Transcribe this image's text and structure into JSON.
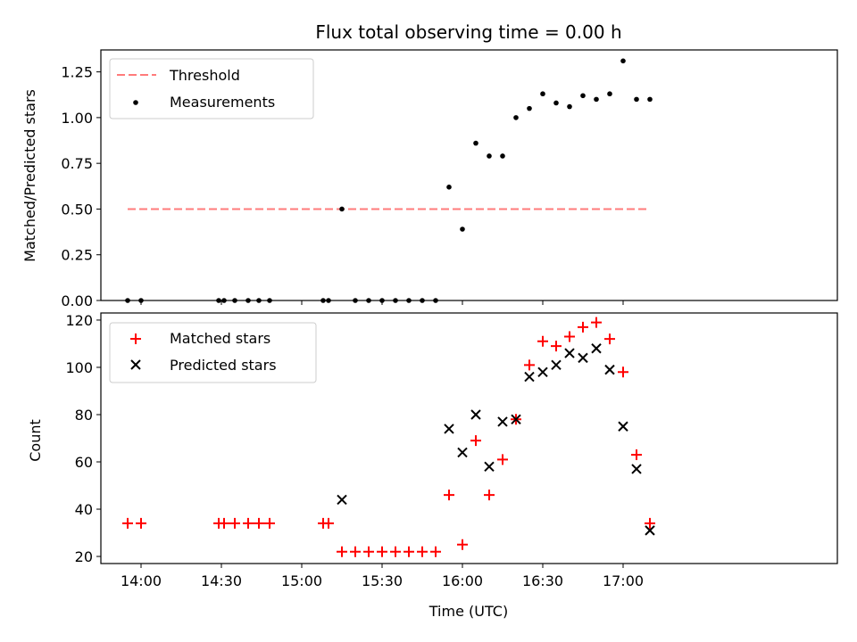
{
  "chart_data": [
    {
      "type": "scatter",
      "title": "Flux total observing time = 0.00 h",
      "xlabel": "",
      "ylabel": "Matched/Predicted stars",
      "ylim": [
        0,
        1.37
      ],
      "yticks": [
        "0.00",
        "0.25",
        "0.50",
        "0.75",
        "1.00",
        "1.25"
      ],
      "xlim_min": [
        825,
        1100
      ],
      "legend": [
        "Threshold",
        "Measurements"
      ],
      "threshold": {
        "name": "Threshold",
        "value": 0.5,
        "x_range_min": [
          835,
          1030
        ],
        "color": "#ff7b7b"
      },
      "series": [
        {
          "name": "Measurements",
          "color": "#000000",
          "points": [
            [
              835,
              0
            ],
            [
              840,
              0
            ],
            [
              869,
              0
            ],
            [
              871,
              0
            ],
            [
              875,
              0
            ],
            [
              880,
              0
            ],
            [
              884,
              0
            ],
            [
              888,
              0
            ],
            [
              908,
              0
            ],
            [
              910,
              0
            ],
            [
              915,
              0.5
            ],
            [
              920,
              0
            ],
            [
              925,
              0
            ],
            [
              930,
              0
            ],
            [
              935,
              0
            ],
            [
              940,
              0
            ],
            [
              945,
              0
            ],
            [
              950,
              0
            ],
            [
              955,
              0.62
            ],
            [
              960,
              0.39
            ],
            [
              965,
              0.86
            ],
            [
              970,
              0.79
            ],
            [
              975,
              0.79
            ],
            [
              980,
              1.0
            ],
            [
              985,
              1.05
            ],
            [
              990,
              1.13
            ],
            [
              995,
              1.08
            ],
            [
              1000,
              1.06
            ],
            [
              1005,
              1.12
            ],
            [
              1010,
              1.1
            ],
            [
              1015,
              1.13
            ],
            [
              1020,
              1.31
            ],
            [
              1025,
              1.1
            ],
            [
              1030,
              1.1
            ]
          ]
        }
      ]
    },
    {
      "type": "scatter",
      "title": "",
      "xlabel": "Time (UTC)",
      "ylabel": "Count",
      "ylim": [
        17,
        123
      ],
      "yticks": [
        "20",
        "40",
        "60",
        "80",
        "100",
        "120"
      ],
      "xticks": [
        "14:00",
        "14:30",
        "15:00",
        "15:30",
        "16:00",
        "16:30",
        "17:00"
      ],
      "xtick_values_min": [
        840,
        870,
        900,
        930,
        960,
        990,
        1020
      ],
      "xlim_min": [
        825,
        1100
      ],
      "legend": [
        "Matched stars",
        "Predicted stars"
      ],
      "series": [
        {
          "name": "Matched stars",
          "marker": "plus",
          "color": "#ff0000",
          "points": [
            [
              835,
              34
            ],
            [
              840,
              34
            ],
            [
              869,
              34
            ],
            [
              871,
              34
            ],
            [
              875,
              34
            ],
            [
              880,
              34
            ],
            [
              884,
              34
            ],
            [
              888,
              34
            ],
            [
              908,
              34
            ],
            [
              910,
              34
            ],
            [
              915,
              22
            ],
            [
              920,
              22
            ],
            [
              925,
              22
            ],
            [
              930,
              22
            ],
            [
              935,
              22
            ],
            [
              940,
              22
            ],
            [
              945,
              22
            ],
            [
              950,
              22
            ],
            [
              955,
              46
            ],
            [
              960,
              25
            ],
            [
              965,
              69
            ],
            [
              970,
              46
            ],
            [
              975,
              61
            ],
            [
              980,
              78
            ],
            [
              985,
              101
            ],
            [
              990,
              111
            ],
            [
              995,
              109
            ],
            [
              1000,
              113
            ],
            [
              1005,
              117
            ],
            [
              1010,
              119
            ],
            [
              1015,
              112
            ],
            [
              1020,
              98
            ],
            [
              1025,
              63
            ],
            [
              1030,
              34
            ]
          ]
        },
        {
          "name": "Predicted stars",
          "marker": "x",
          "color": "#000000",
          "points": [
            [
              915,
              44
            ],
            [
              955,
              74
            ],
            [
              960,
              64
            ],
            [
              965,
              80
            ],
            [
              970,
              58
            ],
            [
              975,
              77
            ],
            [
              980,
              78
            ],
            [
              985,
              96
            ],
            [
              990,
              98
            ],
            [
              995,
              101
            ],
            [
              1000,
              106
            ],
            [
              1005,
              104
            ],
            [
              1010,
              108
            ],
            [
              1015,
              99
            ],
            [
              1020,
              75
            ],
            [
              1025,
              57
            ],
            [
              1030,
              31
            ]
          ]
        }
      ]
    }
  ]
}
